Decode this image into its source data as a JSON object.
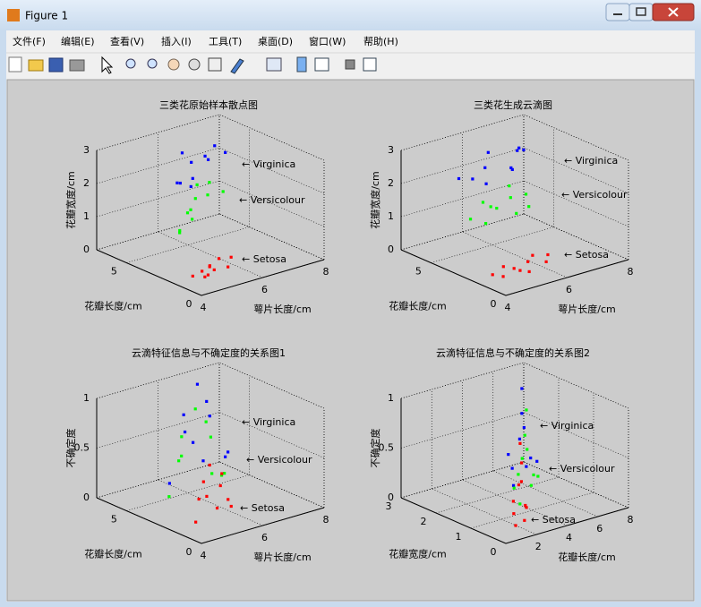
{
  "window": {
    "title": "Figure 1"
  },
  "menu": [
    "文件(F)",
    "编辑(E)",
    "查看(V)",
    "插入(I)",
    "工具(T)",
    "桌面(D)",
    "窗口(W)",
    "帮助(H)"
  ],
  "plots": [
    {
      "title": "三类花原始样本散点图",
      "xlabel": "萼片长度/cm",
      "ylabel": "花瓣长度/cm",
      "zlabel": "花瓣宽度/cm",
      "xlim": [
        4,
        8
      ],
      "ylim": [
        0,
        7
      ],
      "zlim": [
        0,
        3
      ],
      "xticks": [
        4,
        6,
        8
      ],
      "yticks": [
        0,
        5
      ],
      "zticks": [
        0,
        1,
        2,
        3
      ],
      "series": [
        {
          "label": "← Virginica",
          "color": "#0000ff",
          "points": [
            [
              6.3,
              6.0,
              2.5
            ],
            [
              5.8,
              5.1,
              1.9
            ],
            [
              7.1,
              5.9,
              2.1
            ],
            [
              6.5,
              5.8,
              2.2
            ],
            [
              7.7,
              6.7,
              2.2
            ],
            [
              6.0,
              4.8,
              1.8
            ],
            [
              6.9,
              5.7,
              2.3
            ],
            [
              7.9,
              6.4,
              2.0
            ],
            [
              5.6,
              4.9,
              2.0
            ],
            [
              6.4,
              5.5,
              1.8
            ]
          ]
        },
        {
          "label": "← Versicolour",
          "color": "#00ff00",
          "points": [
            [
              5.5,
              4.0,
              1.3
            ],
            [
              6.0,
              4.5,
              1.5
            ],
            [
              6.4,
              4.5,
              1.5
            ],
            [
              7.0,
              4.7,
              1.4
            ],
            [
              5.7,
              4.2,
              1.3
            ],
            [
              4.9,
              3.3,
              1.0
            ],
            [
              6.7,
              5.0,
              1.7
            ],
            [
              5.6,
              3.9,
              1.1
            ],
            [
              6.2,
              4.8,
              1.8
            ],
            [
              5.0,
              3.5,
              1.0
            ]
          ]
        },
        {
          "label": "← Setosa",
          "color": "#ff0000",
          "points": [
            [
              4.4,
              1.4,
              0.2
            ],
            [
              4.8,
              1.6,
              0.2
            ],
            [
              5.0,
              1.5,
              0.3
            ],
            [
              5.1,
              1.4,
              0.2
            ],
            [
              5.4,
              1.7,
              0.4
            ],
            [
              5.7,
              1.5,
              0.4
            ],
            [
              4.6,
              1.0,
              0.2
            ],
            [
              5.2,
              1.9,
              0.2
            ],
            [
              4.9,
              1.4,
              0.1
            ],
            [
              5.5,
              1.3,
              0.2
            ]
          ]
        }
      ]
    },
    {
      "title": "三类花生成云滴图",
      "xlabel": "萼片长度/cm",
      "ylabel": "花瓣长度/cm",
      "zlabel": "花瓣宽度/cm",
      "xlim": [
        4,
        8
      ],
      "ylim": [
        0,
        7
      ],
      "zlim": [
        0,
        3
      ],
      "xticks": [
        4,
        6,
        8
      ],
      "yticks": [
        0,
        5
      ],
      "zticks": [
        0,
        1,
        2,
        3
      ],
      "series": [
        {
          "label": "← Virginica",
          "color": "#0000ff",
          "points": [
            [
              5.6,
              5.5,
              2.0
            ],
            [
              6.2,
              5.9,
              2.1
            ],
            [
              7.0,
              5.8,
              1.9
            ],
            [
              7.6,
              6.5,
              2.2
            ],
            [
              6.5,
              6.3,
              2.4
            ],
            [
              5.8,
              5.0,
              1.9
            ],
            [
              7.3,
              6.0,
              2.3
            ],
            [
              6.8,
              5.3,
              2.0
            ],
            [
              5.2,
              5.6,
              2.1
            ],
            [
              7.9,
              6.8,
              2.0
            ]
          ]
        },
        {
          "label": "← Versicolour",
          "color": "#00ff00",
          "points": [
            [
              5.2,
              3.8,
              1.1
            ],
            [
              5.8,
              4.3,
              1.3
            ],
            [
              6.4,
              4.6,
              1.4
            ],
            [
              7.0,
              4.8,
              1.3
            ],
            [
              5.5,
              4.6,
              1.5
            ],
            [
              6.1,
              3.6,
              1.2
            ],
            [
              6.8,
              4.2,
              1.1
            ],
            [
              4.8,
              4.0,
              1.3
            ],
            [
              6.6,
              5.1,
              1.6
            ],
            [
              5.9,
              4.9,
              1.2
            ]
          ]
        },
        {
          "label": "← Setosa",
          "color": "#ff0000",
          "points": [
            [
              4.5,
              1.2,
              0.2
            ],
            [
              5.0,
              1.5,
              0.25
            ],
            [
              5.5,
              1.6,
              0.3
            ],
            [
              6.0,
              1.4,
              0.2
            ],
            [
              4.8,
              1.8,
              0.3
            ],
            [
              5.3,
              1.1,
              0.15
            ],
            [
              5.8,
              1.9,
              0.35
            ],
            [
              4.3,
              1.5,
              0.25
            ],
            [
              6.2,
              1.7,
              0.3
            ],
            [
              5.1,
              1.3,
              0.2
            ]
          ]
        }
      ]
    },
    {
      "title": "云滴特征信息与不确定度的关系图1",
      "xlabel": "萼片长度/cm",
      "ylabel": "花瓣长度/cm",
      "zlabel": "不确定度",
      "xlim": [
        4,
        8
      ],
      "ylim": [
        0,
        7
      ],
      "zlim": [
        0,
        1
      ],
      "xticks": [
        4,
        6,
        8
      ],
      "yticks": [
        0,
        5
      ],
      "zticks": [
        0,
        0.5,
        1
      ],
      "series": [
        {
          "label": "←   Virginica",
          "color": "#0000ff",
          "points": [
            [
              6.6,
              5.6,
              1.0
            ],
            [
              6.0,
              5.2,
              0.6
            ],
            [
              7.2,
              6.0,
              0.6
            ],
            [
              5.4,
              5.0,
              0.15
            ],
            [
              7.9,
              6.4,
              0.1
            ],
            [
              6.4,
              4.8,
              0.3
            ],
            [
              6.8,
              6.3,
              0.35
            ],
            [
              6.9,
              5.6,
              0.8
            ],
            [
              6.3,
              5.9,
              0.7
            ],
            [
              7.5,
              5.4,
              0.25
            ]
          ]
        },
        {
          "label": "← Versicolour",
          "color": "#00ff00",
          "points": [
            [
              5.9,
              4.3,
              0.9
            ],
            [
              5.3,
              4.0,
              0.5
            ],
            [
              6.5,
              4.5,
              0.55
            ],
            [
              4.8,
              3.8,
              0.15
            ],
            [
              7.0,
              4.8,
              0.1
            ],
            [
              6.0,
              3.4,
              0.3
            ],
            [
              5.7,
              5.0,
              0.35
            ],
            [
              6.2,
              4.2,
              0.75
            ],
            [
              5.5,
              4.4,
              0.65
            ],
            [
              6.7,
              4.0,
              0.2
            ]
          ]
        },
        {
          "label": "← Setosa",
          "color": "#ff0000",
          "points": [
            [
              5.0,
              1.5,
              0.6
            ],
            [
              4.6,
              1.4,
              0.3
            ],
            [
              5.4,
              1.6,
              0.35
            ],
            [
              4.4,
              1.2,
              0.1
            ],
            [
              5.8,
              1.7,
              0.1
            ],
            [
              5.0,
              1.0,
              0.2
            ],
            [
              5.1,
              1.9,
              0.25
            ],
            [
              4.8,
              1.5,
              0.45
            ],
            [
              5.3,
              1.3,
              0.5
            ],
            [
              5.6,
              1.5,
              0.2
            ]
          ]
        }
      ]
    },
    {
      "title": "云滴特征信息与不确定度的关系图2",
      "xlabel": "花瓣长度/cm",
      "ylabel": "花瓣宽度/cm",
      "zlabel": "不确定度",
      "xlim": [
        0,
        8
      ],
      "ylim": [
        0,
        3
      ],
      "zlim": [
        0,
        1
      ],
      "xticks": [
        2,
        4,
        6,
        8
      ],
      "yticks": [
        0,
        1,
        2,
        3
      ],
      "zticks": [
        0,
        0.5,
        1
      ],
      "series": [
        {
          "label": "← Virginica",
          "color": "#0000ff",
          "points": [
            [
              5.6,
              2.0,
              1.0
            ],
            [
              5.0,
              1.8,
              0.55
            ],
            [
              6.2,
              2.2,
              0.55
            ],
            [
              4.6,
              1.8,
              0.1
            ],
            [
              6.8,
              2.4,
              0.1
            ],
            [
              5.4,
              2.3,
              0.3
            ],
            [
              5.9,
              1.7,
              0.3
            ],
            [
              5.6,
              2.0,
              0.75
            ],
            [
              5.2,
              2.1,
              0.2
            ],
            [
              6.4,
              2.1,
              0.25
            ]
          ]
        },
        {
          "label": "← Versicolour",
          "color": "#00ff00",
          "points": [
            [
              4.3,
              1.3,
              0.95
            ],
            [
              3.8,
              1.2,
              0.5
            ],
            [
              4.8,
              1.5,
              0.5
            ],
            [
              3.2,
              1.0,
              0.1
            ],
            [
              5.3,
              1.6,
              0.1
            ],
            [
              4.0,
              1.4,
              0.3
            ],
            [
              4.6,
              1.1,
              0.3
            ],
            [
              4.2,
              1.3,
              0.7
            ],
            [
              3.5,
              1.3,
              0.2
            ],
            [
              5.0,
              1.4,
              0.25
            ]
          ]
        },
        {
          "label": "← Setosa",
          "color": "#ff0000",
          "points": [
            [
              1.5,
              0.25,
              0.9
            ],
            [
              1.3,
              0.2,
              0.5
            ],
            [
              1.7,
              0.3,
              0.5
            ],
            [
              1.1,
              0.2,
              0.1
            ],
            [
              1.9,
              0.3,
              0.1
            ],
            [
              1.5,
              0.1,
              0.3
            ],
            [
              1.4,
              0.4,
              0.3
            ],
            [
              1.6,
              0.25,
              0.7
            ],
            [
              1.2,
              0.3,
              0.2
            ],
            [
              1.8,
              0.2,
              0.25
            ]
          ]
        }
      ]
    }
  ]
}
